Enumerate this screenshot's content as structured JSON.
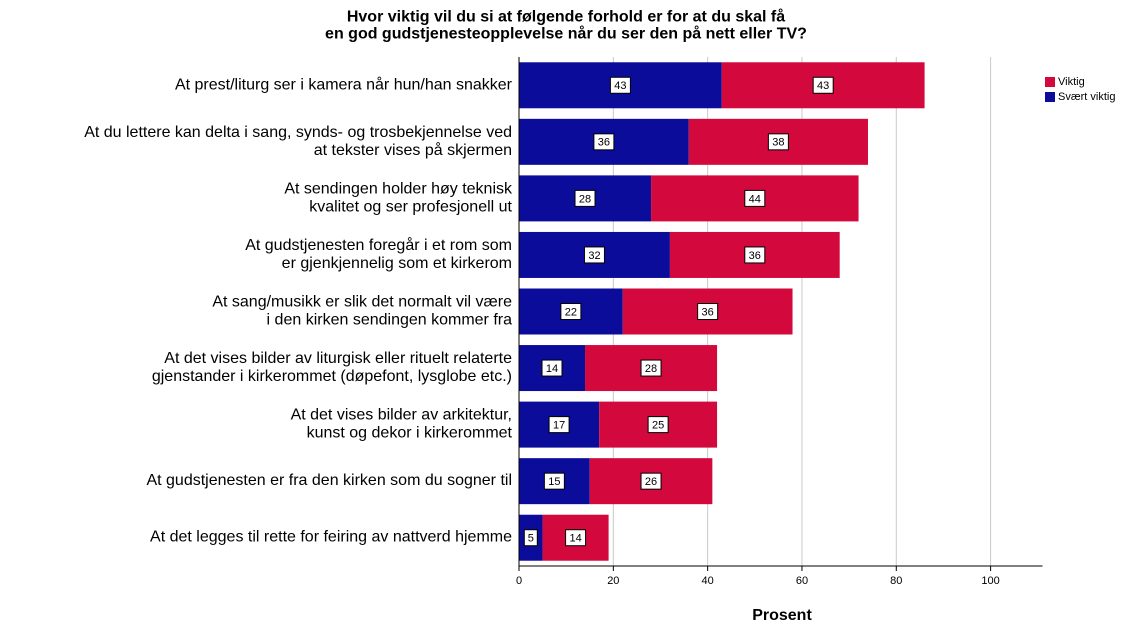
{
  "chart_data": {
    "type": "stacked_barh",
    "title": "Hvor viktig vil du si at følgende forhold er for at du skal få\nen god gudstjenesteopplevelse når du ser den på nett eller TV?",
    "categories": [
      "At prest/liturg ser i kamera når hun/han snakker",
      "At du lettere kan delta i sang, synds- og trosbekjennelse ved\nat tekster vises på skjermen",
      "At sendingen holder høy teknisk\nkvalitet og ser profesjonell ut",
      "At gudstjenesten foregår i et rom som\ner gjenkjennelig som et kirkerom",
      "At sang/musikk er slik det normalt vil være\ni den kirken sendingen kommer fra",
      "At det vises bilder av liturgisk eller rituelt relaterte\ngjenstander i kirkerommet (døpefont, lysglobe etc.)",
      "At det vises bilder av arkitektur,\nkunst og dekor i kirkerommet",
      "At gudstjenesten er fra den kirken som du sogner til",
      "At det legges til rette for feiring av nattverd hjemme"
    ],
    "series": [
      {
        "name": "Svært viktig",
        "color": "#0c0c9a",
        "values": [
          43,
          36,
          28,
          32,
          22,
          14,
          17,
          15,
          5
        ]
      },
      {
        "name": "Viktig",
        "color": "#d3083c",
        "values": [
          43,
          38,
          44,
          36,
          36,
          28,
          25,
          26,
          14
        ]
      }
    ],
    "xlabel": "Prosent",
    "xlim": [
      0,
      111
    ],
    "xticks": [
      0,
      20,
      40,
      60,
      80,
      100
    ],
    "grid": true,
    "legend": "right"
  }
}
